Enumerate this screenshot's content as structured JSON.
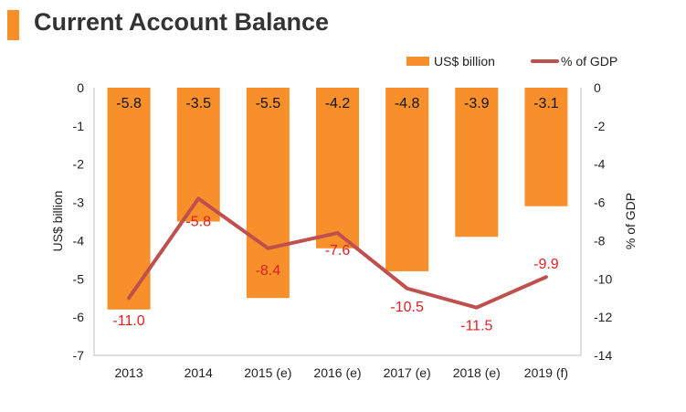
{
  "title": "Current Account Balance",
  "chart_data": {
    "type": "bar+line",
    "categories": [
      "2013",
      "2014",
      "2015 (e)",
      "2016 (e)",
      "2017 (e)",
      "2018 (e)",
      "2019 (f)"
    ],
    "series": [
      {
        "name": "US$ billion",
        "type": "bar",
        "axis": "left",
        "color": "#f7902b",
        "values": [
          -5.8,
          -3.5,
          -5.5,
          -4.2,
          -4.8,
          -3.9,
          -3.1
        ]
      },
      {
        "name": "% of GDP",
        "type": "line",
        "axis": "right",
        "color": "#c0504d",
        "values": [
          -11.0,
          -5.8,
          -8.4,
          -7.6,
          -10.5,
          -11.5,
          -9.9
        ]
      }
    ],
    "bar_labels": [
      "-5.8",
      "-3.5",
      "-5.5",
      "-4.2",
      "-4.8",
      "-3.9",
      "-3.1"
    ],
    "line_labels": [
      "-11.0",
      "-5.8",
      "-8.4",
      "-7.6",
      "-10.5",
      "-11.5",
      "-9.9"
    ],
    "ylabel_left": "US$ billion",
    "ylabel_right": "% of GDP",
    "ylim_left": [
      -7,
      0
    ],
    "ylim_right": [
      -14,
      0
    ],
    "yticks_left": [
      "0",
      "-1",
      "-2",
      "-3",
      "-4",
      "-5",
      "-6",
      "-7"
    ],
    "yticks_right": [
      "0",
      "-2",
      "-4",
      "-6",
      "-8",
      "-10",
      "-12",
      "-14"
    ],
    "legend_position": "top-right",
    "grid": false,
    "label_color": "#e31e24"
  }
}
